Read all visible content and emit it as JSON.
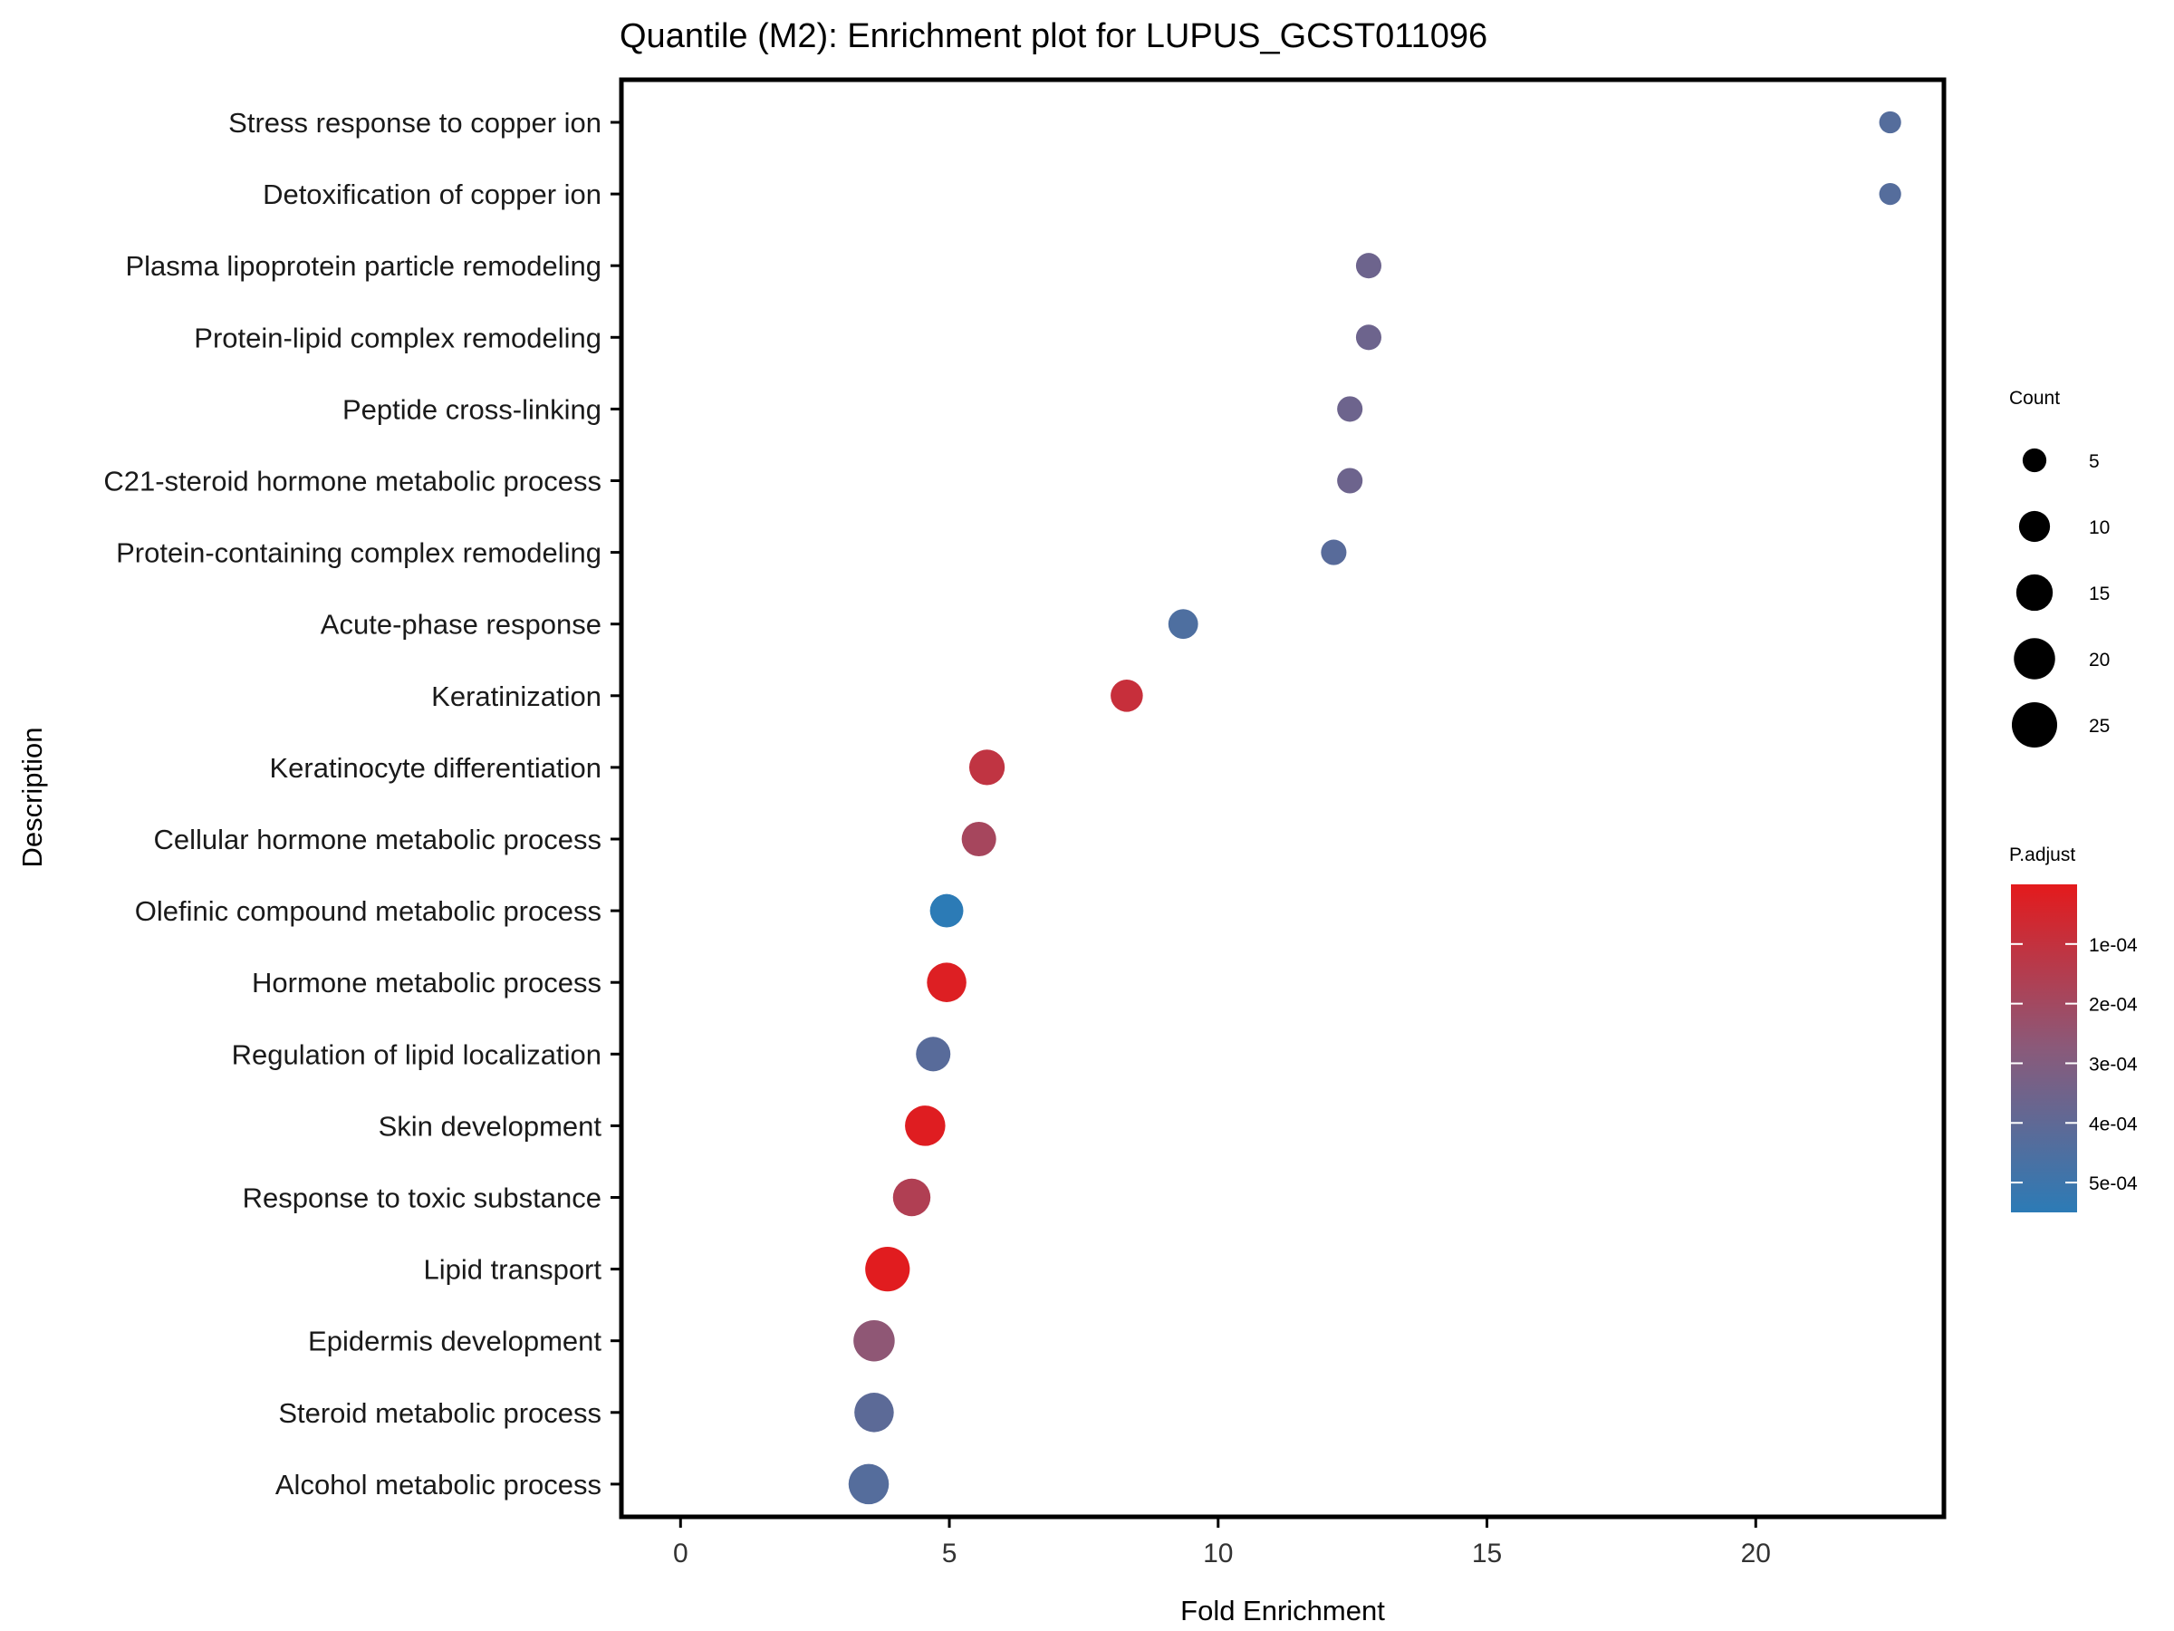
{
  "chart_data": {
    "type": "scatter",
    "title": "Quantile (M2): Enrichment plot for LUPUS_GCST011096",
    "xlabel": "Fold Enrichment",
    "ylabel": "Description",
    "xlim": [
      -1.1,
      23.5
    ],
    "x_ticks": [
      0,
      5,
      10,
      15,
      20
    ],
    "x_tick_labels": [
      "0",
      "5",
      "10",
      "15",
      "20"
    ],
    "grid": false,
    "categories": [
      "Stress response to copper ion",
      "Detoxification of copper ion",
      "Plasma lipoprotein particle remodeling",
      "Protein-lipid complex remodeling",
      "Peptide cross-linking",
      "C21-steroid hormone metabolic process",
      "Protein-containing complex remodeling",
      "Acute-phase response",
      "Keratinization",
      "Keratinocyte differentiation",
      "Cellular hormone metabolic process",
      "Olefinic compound metabolic process",
      "Hormone metabolic process",
      "Regulation of lipid localization",
      "Skin development",
      "Response to toxic substance",
      "Lipid transport",
      "Epidermis development",
      "Steroid metabolic process",
      "Alcohol metabolic process"
    ],
    "fold_enrichment": [
      22.5,
      22.5,
      12.8,
      12.8,
      12.45,
      12.45,
      12.15,
      9.35,
      8.3,
      5.7,
      5.55,
      4.95,
      4.95,
      4.7,
      4.55,
      4.3,
      3.85,
      3.6,
      3.6,
      3.5
    ],
    "count": [
      4,
      4,
      6,
      6,
      6,
      6,
      6,
      9,
      11,
      14,
      13,
      12,
      18,
      13,
      19,
      16,
      24,
      20,
      18,
      19
    ],
    "p_adjust": [
      0.00043,
      0.00043,
      0.00036,
      0.00036,
      0.00036,
      0.00036,
      0.00042,
      0.00045,
      9e-05,
      0.00011,
      0.00019,
      0.00055,
      2e-05,
      0.00042,
      1.5e-05,
      0.00016,
      1e-05,
      0.00026,
      0.00041,
      0.00043
    ],
    "size_legend": {
      "title": "Count",
      "values": [
        5,
        10,
        15,
        20,
        25
      ],
      "labels": [
        "5",
        "10",
        "15",
        "20",
        "25"
      ]
    },
    "color_legend": {
      "title": "P.adjust",
      "low_color": "#e41a1c",
      "high_color": "#2c7bb6",
      "mid_color": "#8a5a7a",
      "range": [
        0.0,
        0.00055
      ],
      "ticks": [
        0.0001,
        0.0002,
        0.0003,
        0.0004,
        0.0005
      ],
      "tick_labels": [
        "1e-04",
        "2e-04",
        "3e-04",
        "4e-04",
        "5e-04"
      ]
    },
    "legend_position": "right"
  }
}
